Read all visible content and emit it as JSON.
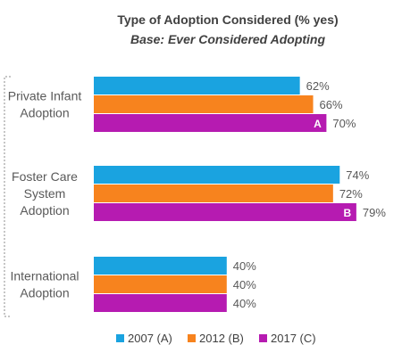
{
  "chart_data": {
    "type": "bar",
    "orientation": "horizontal",
    "title": "Type of Adoption Considered (% yes)",
    "subtitle": "Base: Ever Considered Adopting",
    "categories": [
      [
        "Private Infant",
        "Adoption"
      ],
      [
        "Foster Care",
        "System",
        "Adoption"
      ],
      [
        "International",
        "Adoption"
      ]
    ],
    "series": [
      {
        "name": "2007 (A)",
        "color": "#1aa3e0",
        "values": [
          62,
          74,
          40
        ],
        "labels": [
          "62%",
          "74%",
          "40%"
        ]
      },
      {
        "name": "2012 (B)",
        "color": "#f7831e",
        "values": [
          66,
          72,
          40
        ],
        "labels": [
          "66%",
          "72%",
          "40%"
        ]
      },
      {
        "name": "2017 (C)",
        "color": "#b61bb1",
        "values": [
          70,
          79,
          40
        ],
        "labels": [
          "70%",
          "79%",
          "40%"
        ]
      }
    ],
    "significance_markers": [
      {
        "series": 2,
        "category": 0,
        "text": "A"
      },
      {
        "series": 2,
        "category": 1,
        "text": "B"
      }
    ],
    "legend_position": "bottom",
    "grid": false
  }
}
